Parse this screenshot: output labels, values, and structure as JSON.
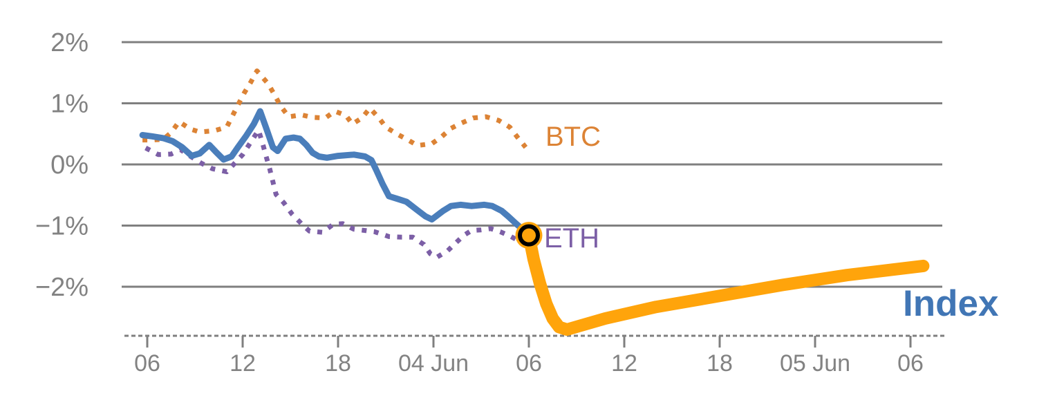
{
  "chart_data": {
    "type": "line",
    "title": "",
    "xlabel": "",
    "ylabel": "",
    "grid": true,
    "x_unit": "hours (time axis: 03 Jun 06:00 through 05 Jun 06:00+)",
    "y_unit": "%",
    "xlim": [
      4.35,
      56.3
    ],
    "ylim": [
      -2.85,
      2.35
    ],
    "x_ticks": [
      {
        "t": 6,
        "label": "06"
      },
      {
        "t": 12,
        "label": "12"
      },
      {
        "t": 18,
        "label": "18"
      },
      {
        "t": 24,
        "label": "04 Jun"
      },
      {
        "t": 30,
        "label": "06"
      },
      {
        "t": 36,
        "label": "12"
      },
      {
        "t": 42,
        "label": "18"
      },
      {
        "t": 48,
        "label": "05 Jun"
      },
      {
        "t": 54,
        "label": "06"
      }
    ],
    "y_ticks": [
      {
        "value": 2,
        "label": "2%"
      },
      {
        "value": 1,
        "label": "1%"
      },
      {
        "value": 0,
        "label": "0%"
      },
      {
        "value": -1,
        "label": "−1%"
      },
      {
        "value": -2,
        "label": "−2%"
      }
    ],
    "series": [
      {
        "name": "BTC",
        "label": "BTC",
        "style": "dotted",
        "color": "#DC8335",
        "width": 7,
        "points": [
          [
            5.7,
            0.4
          ],
          [
            6.3,
            0.4
          ],
          [
            7.0,
            0.41
          ],
          [
            7.5,
            0.52
          ],
          [
            8.0,
            0.7
          ],
          [
            8.7,
            0.58
          ],
          [
            9.3,
            0.53
          ],
          [
            10.2,
            0.55
          ],
          [
            11.0,
            0.61
          ],
          [
            11.7,
            0.97
          ],
          [
            12.1,
            1.17
          ],
          [
            12.5,
            1.34
          ],
          [
            12.9,
            1.53
          ],
          [
            13.6,
            1.32
          ],
          [
            14.0,
            1.14
          ],
          [
            14.4,
            0.95
          ],
          [
            14.9,
            0.78
          ],
          [
            15.7,
            0.81
          ],
          [
            16.4,
            0.77
          ],
          [
            17.2,
            0.76
          ],
          [
            17.8,
            0.87
          ],
          [
            18.5,
            0.8
          ],
          [
            18.9,
            0.66
          ],
          [
            19.5,
            0.76
          ],
          [
            20.0,
            0.92
          ],
          [
            20.6,
            0.75
          ],
          [
            21.0,
            0.61
          ],
          [
            21.7,
            0.5
          ],
          [
            22.4,
            0.4
          ],
          [
            23.0,
            0.31
          ],
          [
            23.9,
            0.34
          ],
          [
            24.5,
            0.45
          ],
          [
            25.1,
            0.59
          ],
          [
            25.7,
            0.67
          ],
          [
            26.5,
            0.76
          ],
          [
            27.3,
            0.78
          ],
          [
            28.1,
            0.72
          ],
          [
            28.8,
            0.61
          ],
          [
            29.3,
            0.44
          ],
          [
            29.8,
            0.28
          ]
        ]
      },
      {
        "name": "ETH",
        "label": "ETH",
        "style": "dotted",
        "color": "#7C5FA6",
        "width": 7,
        "points": [
          [
            5.9,
            0.27
          ],
          [
            6.7,
            0.16
          ],
          [
            7.5,
            0.17
          ],
          [
            8.1,
            0.24
          ],
          [
            8.8,
            0.12
          ],
          [
            9.4,
            0.02
          ],
          [
            10.1,
            -0.07
          ],
          [
            11.0,
            -0.12
          ],
          [
            11.5,
            0.02
          ],
          [
            12.0,
            0.16
          ],
          [
            12.5,
            0.36
          ],
          [
            13.0,
            0.56
          ],
          [
            13.3,
            0.3
          ],
          [
            13.5,
            0.11
          ],
          [
            13.7,
            -0.07
          ],
          [
            13.9,
            -0.28
          ],
          [
            14.1,
            -0.49
          ],
          [
            14.6,
            -0.63
          ],
          [
            15.1,
            -0.81
          ],
          [
            15.7,
            -0.97
          ],
          [
            16.2,
            -1.09
          ],
          [
            17.0,
            -1.11
          ],
          [
            17.7,
            -0.98
          ],
          [
            18.3,
            -0.97
          ],
          [
            19.0,
            -1.06
          ],
          [
            19.7,
            -1.08
          ],
          [
            20.3,
            -1.1
          ],
          [
            21.2,
            -1.18
          ],
          [
            22.0,
            -1.19
          ],
          [
            22.7,
            -1.19
          ],
          [
            23.4,
            -1.31
          ],
          [
            23.8,
            -1.46
          ],
          [
            24.2,
            -1.52
          ],
          [
            24.9,
            -1.41
          ],
          [
            25.3,
            -1.31
          ],
          [
            25.9,
            -1.16
          ],
          [
            26.4,
            -1.08
          ],
          [
            27.0,
            -1.07
          ],
          [
            27.6,
            -1.05
          ],
          [
            28.2,
            -1.1
          ],
          [
            28.8,
            -1.17
          ],
          [
            29.3,
            -1.24
          ],
          [
            29.7,
            -1.31
          ],
          [
            30.3,
            -1.44
          ]
        ]
      },
      {
        "name": "Index",
        "label": "Index",
        "style": "solid",
        "color": "#4A7EBB",
        "width": 9,
        "points": [
          [
            5.7,
            0.48
          ],
          [
            6.3,
            0.46
          ],
          [
            7.0,
            0.43
          ],
          [
            7.6,
            0.38
          ],
          [
            8.2,
            0.28
          ],
          [
            8.8,
            0.14
          ],
          [
            9.3,
            0.18
          ],
          [
            9.9,
            0.32
          ],
          [
            10.3,
            0.21
          ],
          [
            10.8,
            0.08
          ],
          [
            11.3,
            0.13
          ],
          [
            11.7,
            0.28
          ],
          [
            12.2,
            0.46
          ],
          [
            12.7,
            0.66
          ],
          [
            13.1,
            0.87
          ],
          [
            13.5,
            0.58
          ],
          [
            13.9,
            0.28
          ],
          [
            14.2,
            0.22
          ],
          [
            14.7,
            0.42
          ],
          [
            15.2,
            0.44
          ],
          [
            15.6,
            0.42
          ],
          [
            16.0,
            0.32
          ],
          [
            16.4,
            0.19
          ],
          [
            16.8,
            0.13
          ],
          [
            17.3,
            0.11
          ],
          [
            18.0,
            0.14
          ],
          [
            19.0,
            0.16
          ],
          [
            19.7,
            0.13
          ],
          [
            20.1,
            0.07
          ],
          [
            20.4,
            -0.09
          ],
          [
            20.8,
            -0.32
          ],
          [
            21.2,
            -0.52
          ],
          [
            21.7,
            -0.56
          ],
          [
            22.3,
            -0.61
          ],
          [
            23.0,
            -0.75
          ],
          [
            23.5,
            -0.85
          ],
          [
            23.9,
            -0.9
          ],
          [
            24.6,
            -0.76
          ],
          [
            25.1,
            -0.68
          ],
          [
            25.7,
            -0.66
          ],
          [
            26.4,
            -0.68
          ],
          [
            27.2,
            -0.66
          ],
          [
            27.7,
            -0.68
          ],
          [
            28.3,
            -0.76
          ],
          [
            28.7,
            -0.85
          ],
          [
            29.2,
            -0.97
          ],
          [
            29.6,
            -1.06
          ],
          [
            30.0,
            -1.16
          ]
        ]
      },
      {
        "name": "Index (continuation)",
        "label": "",
        "style": "solid",
        "color": "#FFA40B",
        "width": 18,
        "points": [
          [
            30.0,
            -1.16
          ],
          [
            30.3,
            -1.55
          ],
          [
            30.7,
            -1.95
          ],
          [
            31.1,
            -2.28
          ],
          [
            31.5,
            -2.52
          ],
          [
            31.9,
            -2.66
          ],
          [
            32.4,
            -2.7
          ],
          [
            33.2,
            -2.64
          ],
          [
            34.8,
            -2.52
          ],
          [
            38.0,
            -2.33
          ],
          [
            42.0,
            -2.15
          ],
          [
            46.0,
            -1.97
          ],
          [
            50.0,
            -1.81
          ],
          [
            54.8,
            -1.66
          ]
        ]
      }
    ],
    "marker": {
      "series": "Index",
      "t": 30.0,
      "value": -1.16,
      "fill": "#FFA40B",
      "ring_color": "#000000"
    },
    "legend_position": "end-of-line labels",
    "colors": {
      "gridline": "#7F7F7F",
      "axis_text": "#828282",
      "index_label": "#4176B5"
    }
  }
}
